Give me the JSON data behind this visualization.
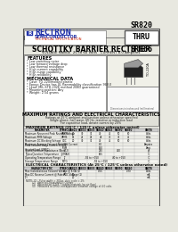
{
  "bg_color": "#e8e8e0",
  "title_box_text": "SR820\nTHRU\nSR866",
  "company_name": "RECTRON",
  "company_sub": "SEMICONDUCTOR",
  "company_sub2": "TECHNICAL SPECIFICATION",
  "main_title": "SCHOTTKY BARRIER RECTIFIER",
  "subtitle": "VOLTAGE RANGE  20 to 60 Volts   CURRENT 8.0 Amperes",
  "features_title": "FEATURES",
  "features": [
    "* Low switching noise",
    "* Low forward voltage drop",
    "* Low thermal resistance",
    "* High current capability",
    "* High surge capability",
    "* High reliability"
  ],
  "mech_title": "MECHANICAL DATA",
  "mech": [
    "* Case: TO-220/molded plastic",
    "* Epoxy: Device has UL flammability classification 94V-0",
    "* Lead: MIL-STD-202E method 208D guaranteed",
    "* Mounting position: Any",
    "* Weight: 2.54 grams"
  ],
  "note_title": "MAXIMUM RATINGS AND ELECTRICAL CHARACTERISTICS",
  "note1": "Ratings at 25°C ambient and junction unless otherwise specified",
  "note2": "Single phase, half wave, 60 Hz, resistive or inductive load",
  "note3": "For capacitive load, derate current by 20%",
  "ratings_title": "MAXIMUM RATINGS (25°C / 125°C unless otherwise noted)",
  "ratings_header": [
    "PARAMETER",
    "SYMBOL",
    "SR820",
    "SR830",
    "SR835",
    "SR840",
    "SR845",
    "SR850",
    "SR860",
    "UNITS"
  ],
  "elec_title": "ELECTRICAL CHARACTERISTICS (At 25°C / 125°C unless otherwise noted)",
  "elec_header": [
    "CHARACTERISTIC",
    "SYMBOL",
    "SR820",
    "SR830",
    "SR835",
    "SR840",
    "SR845",
    "SR850",
    "SR860",
    "UNITS"
  ],
  "package_label": "TO-220A"
}
